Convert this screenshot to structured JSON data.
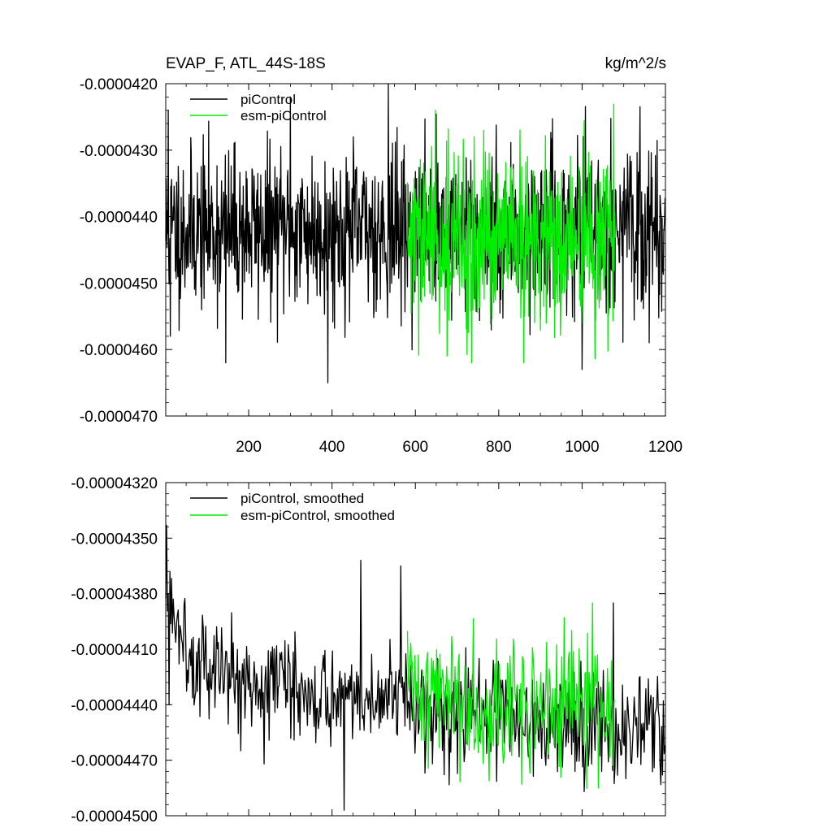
{
  "chart_data": [
    {
      "type": "line",
      "title": "EVAP_F, ATL_44S-18S",
      "units": "kg/m^2/s",
      "xlabel": "",
      "ylabel": "",
      "xlim": [
        1,
        1200
      ],
      "ylim": [
        -4.7e-05,
        -4.2e-05
      ],
      "x_ticks": [
        200,
        400,
        600,
        800,
        1000,
        1200
      ],
      "x_tick_labels": [
        "200",
        "400",
        "600",
        "800",
        "1000",
        "1200"
      ],
      "y_ticks": [
        -4.2e-05,
        -4.3e-05,
        -4.4e-05,
        -4.5e-05,
        -4.6e-05,
        -4.7e-05
      ],
      "y_tick_labels": [
        "-0.0000420",
        "-0.0000430",
        "-0.0000440",
        "-0.0000450",
        "-0.0000460",
        "-0.0000470"
      ],
      "legend_position": "top-left",
      "grid": false,
      "series": [
        {
          "name": "piControl",
          "color": "#000000",
          "x_range": [
            1,
            1200
          ],
          "mean": -4.42e-05,
          "std": 6e-07,
          "seed": 11,
          "spikes": [
            [
              7,
              -4.24e-05
            ],
            [
              12,
              -4.58e-05
            ],
            [
              145,
              -4.62e-05
            ],
            [
              300,
              -4.22e-05
            ],
            [
              390,
              -4.65e-05
            ],
            [
              535,
              -4.19e-05
            ],
            [
              1000,
              -4.63e-05
            ]
          ]
        },
        {
          "name": "esm-piControl",
          "color": "#00ee00",
          "x_range": [
            581,
            1080
          ],
          "mean": -4.44e-05,
          "std": 6.5e-07,
          "seed": 29,
          "spikes": [
            [
              648,
              -4.24e-05
            ],
            [
              735,
              -4.62e-05
            ],
            [
              860,
              -4.62e-05
            ]
          ]
        }
      ]
    },
    {
      "type": "line",
      "title": "",
      "xlabel": "",
      "ylabel": "",
      "xlim": [
        1,
        1200
      ],
      "ylim": [
        -4.5e-05,
        -4.32e-05
      ],
      "x_ticks": [
        200,
        400,
        600,
        800,
        1000,
        1200
      ],
      "y_ticks": [
        -4.32e-05,
        -4.35e-05,
        -4.38e-05,
        -4.41e-05,
        -4.44e-05,
        -4.47e-05,
        -4.5e-05
      ],
      "y_tick_labels": [
        "-0.00004320",
        "-0.00004350",
        "-0.00004380",
        "-0.00004410",
        "-0.00004440",
        "-0.00004470",
        "-0.00004500"
      ],
      "legend_position": "top-left",
      "grid": false,
      "series": [
        {
          "name": "piControl, smoothed",
          "color": "#000000",
          "x_range": [
            1,
            1200
          ],
          "step": 2,
          "seed": 5,
          "trend": [
            [
              1,
              -4.38e-05
            ],
            [
              40,
              -4.4e-05
            ],
            [
              100,
              -4.42e-05
            ],
            [
              300,
              -4.43e-05
            ],
            [
              600,
              -4.44e-05
            ],
            [
              900,
              -4.45e-05
            ],
            [
              1200,
              -4.45e-05
            ]
          ],
          "std": 1.4e-07,
          "spikes": [
            [
              3,
              -4.343e-05
            ],
            [
              10,
              -4.44e-05
            ],
            [
              470,
              -4.362e-05
            ],
            [
              565,
              -4.365e-05
            ],
            [
              430,
              -4.497e-05
            ],
            [
              1005,
              -4.487e-05
            ],
            [
              1075,
              -4.385e-05
            ],
            [
              1105,
              -4.48e-05
            ]
          ]
        },
        {
          "name": "esm-piControl, smoothed",
          "color": "#00ee00",
          "x_range": [
            581,
            1080
          ],
          "step": 2,
          "seed": 41,
          "trend": [
            [
              581,
              -4.43e-05
            ],
            [
              800,
              -4.44e-05
            ],
            [
              1080,
              -4.44e-05
            ]
          ],
          "std": 1.8e-07,
          "spikes": [
            [
              1025,
              -4.385e-05
            ],
            [
              1040,
              -4.485e-05
            ],
            [
              855,
              -4.483e-05
            ]
          ]
        }
      ]
    }
  ]
}
